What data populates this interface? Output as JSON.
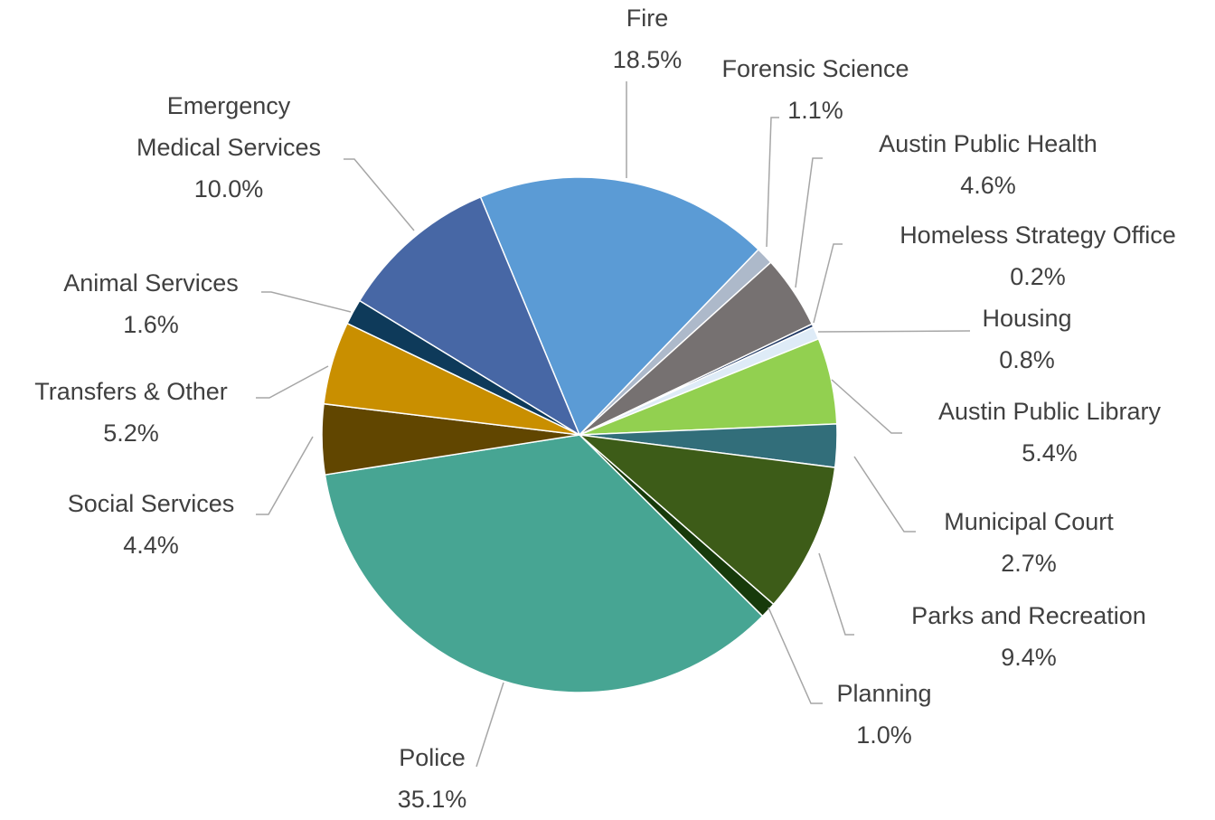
{
  "chart_data": {
    "type": "pie",
    "categories": [
      "Fire",
      "Forensic Science",
      "Austin Public Health",
      "Homeless Strategy Office",
      "Housing",
      "Austin Public Library",
      "Municipal Court",
      "Parks and Recreation",
      "Planning",
      "Police",
      "Social Services",
      "Transfers & Other",
      "Animal Services",
      "Emergency Medical Services"
    ],
    "values": [
      18.5,
      1.1,
      4.6,
      0.2,
      0.8,
      5.4,
      2.7,
      9.4,
      1.0,
      35.1,
      4.4,
      5.2,
      1.6,
      10.0
    ],
    "value_labels": [
      "18.5%",
      "1.1%",
      "4.6%",
      "0.2%",
      "0.8%",
      "5.4%",
      "2.7%",
      "9.4%",
      "1.0%",
      "35.1%",
      "4.4%",
      "5.2%",
      "1.6%",
      "10.0%"
    ],
    "colors": [
      "#5b9bd5",
      "#adb9ca",
      "#767171",
      "#1f3864",
      "#deebf7",
      "#92d050",
      "#326e7a",
      "#3d5c18",
      "#173a0b",
      "#47a593",
      "#614600",
      "#c98f00",
      "#0e3a5a",
      "#4767a5"
    ]
  }
}
